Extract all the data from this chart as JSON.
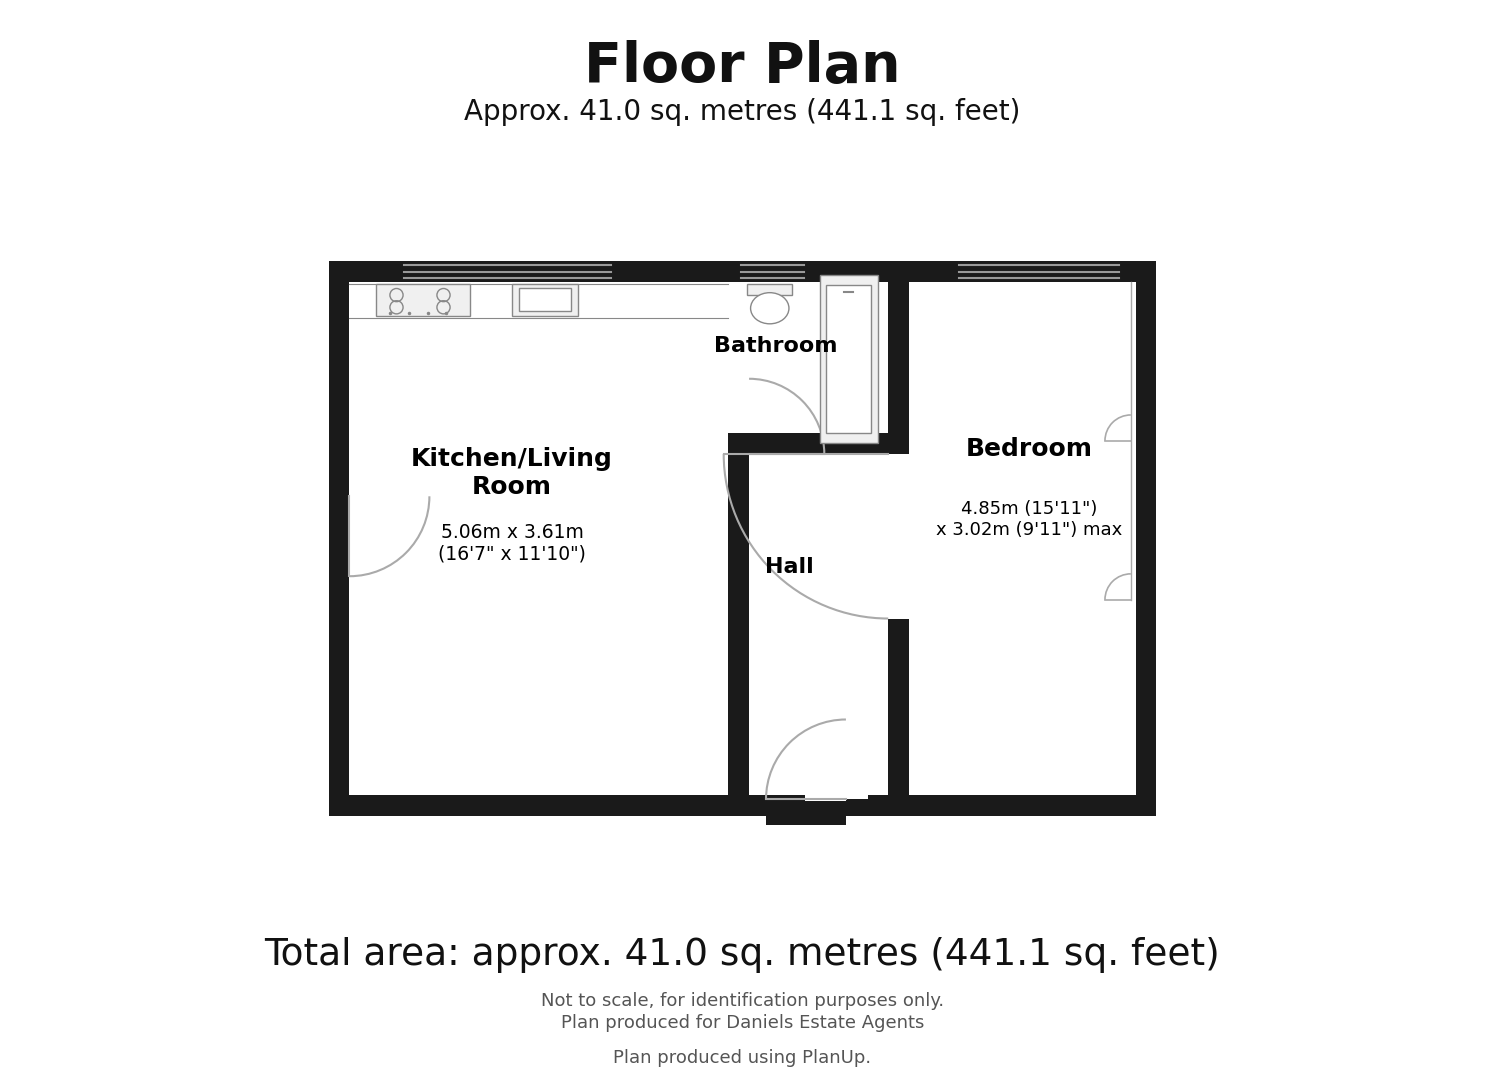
{
  "title": "Floor Plan",
  "subtitle": "Approx. 41.0 sq. metres (441.1 sq. feet)",
  "total_area": "Total area: approx. 41.0 sq. metres (441.1 sq. feet)",
  "disclaimer1": "Not to scale, for identification purposes only.",
  "disclaimer2": "Plan produced for Daniels Estate Agents",
  "produced_by": "Plan produced using PlanUp.",
  "wall_color": "#1a1a1a",
  "floor_color": "#ffffff",
  "fixture_color": "#aaaaaa",
  "bg_color": "#ffffff",
  "rooms": {
    "kitchen_living": {
      "label": "Kitchen/Living\nRoom",
      "dims": "5.06m x 3.61m\n(16'7\" x 11'10\")"
    },
    "bathroom": {
      "label": "Bathroom"
    },
    "hall": {
      "label": "Hall"
    },
    "bedroom": {
      "label": "Bedroom",
      "dims": "4.85m (15'11\")\nx 3.02m (9'11\") max"
    }
  }
}
